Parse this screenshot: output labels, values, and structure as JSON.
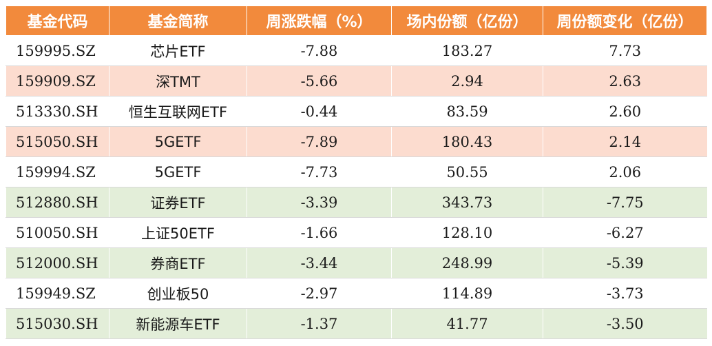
{
  "header": {
    "code": "基金代码",
    "name": "基金简称",
    "weekly_change": "周涨跌幅（%）",
    "shares": "场内份额（亿份）",
    "shares_change": "周份额变化（亿份）"
  },
  "rows": [
    {
      "code": "159995.SZ",
      "name": "芯片ETF",
      "weekly_change": "-7.88",
      "shares": "183.27",
      "shares_change": "7.73",
      "row_color": "#FFFFFF"
    },
    {
      "code": "159909.SZ",
      "name": "深TMT",
      "weekly_change": "-5.66",
      "shares": "2.94",
      "shares_change": "2.63",
      "row_color": "#FCDCCF"
    },
    {
      "code": "513330.SH",
      "name": "恒生互联网ETF",
      "weekly_change": "-0.44",
      "shares": "83.59",
      "shares_change": "2.60",
      "row_color": "#FFFFFF"
    },
    {
      "code": "515050.SH",
      "name": "5GETF",
      "weekly_change": "-7.89",
      "shares": "180.43",
      "shares_change": "2.14",
      "row_color": "#FCDCCF"
    },
    {
      "code": "159994.SZ",
      "name": "5GETF",
      "weekly_change": "-7.73",
      "shares": "50.55",
      "shares_change": "2.06",
      "row_color": "#FFFFFF"
    },
    {
      "code": "512880.SH",
      "name": "证券ETF",
      "weekly_change": "-3.39",
      "shares": "343.73",
      "shares_change": "-7.75",
      "row_color": "#E3EED9"
    },
    {
      "code": "510050.SH",
      "name": "上证50ETF",
      "weekly_change": "-1.66",
      "shares": "128.10",
      "shares_change": "-6.27",
      "row_color": "#FFFFFF"
    },
    {
      "code": "512000.SH",
      "name": "券商ETF",
      "weekly_change": "-3.44",
      "shares": "248.99",
      "shares_change": "-5.39",
      "row_color": "#E3EED9"
    },
    {
      "code": "159949.SZ",
      "name": "创业板50",
      "weekly_change": "-2.97",
      "shares": "114.89",
      "shares_change": "-3.73",
      "row_color": "#FFFFFF"
    },
    {
      "code": "515030.SH",
      "name": "新能源车ETF",
      "weekly_change": "-1.37",
      "shares": "41.77",
      "shares_change": "-3.50",
      "row_color": "#E3EED9"
    }
  ],
  "colors": {
    "header_bg": "#F28A3C",
    "header_text": "#FFFFFF",
    "inflow_row": "#FCDCCF",
    "outflow_row": "#E3EED9"
  }
}
